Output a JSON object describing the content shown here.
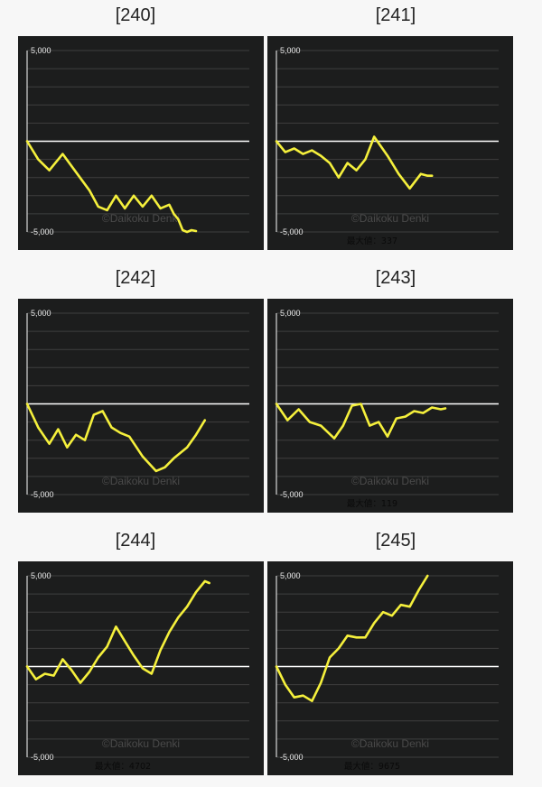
{
  "watermark": "©Daikoku Denki",
  "line_color": "#f5f03c",
  "panel_color": "#1c1d1d",
  "zero_line_color": "#ffffff",
  "chart_data": [
    {
      "type": "line",
      "title": "[240]",
      "ylim": [
        -5000,
        5000
      ],
      "yticks": [
        "5,000",
        "-5,000"
      ],
      "grid": true,
      "max_label": "",
      "x": [
        0,
        5,
        10,
        16,
        22,
        28,
        32,
        36,
        40,
        44,
        48,
        52,
        56,
        60,
        64,
        66,
        68,
        70,
        72,
        74,
        76
      ],
      "y": [
        0,
        -1000,
        -1600,
        -700,
        -1700,
        -2700,
        -3600,
        -3800,
        -3000,
        -3700,
        -3000,
        -3600,
        -3000,
        -3700,
        -3500,
        -4000,
        -4300,
        -4900,
        -5000,
        -4900,
        -4950
      ]
    },
    {
      "type": "line",
      "title": "[241]",
      "ylim": [
        -5000,
        5000
      ],
      "yticks": [
        "5,000",
        "-5,000"
      ],
      "grid": true,
      "max_label": "最大値：337",
      "x": [
        0,
        4,
        8,
        12,
        16,
        20,
        24,
        28,
        32,
        36,
        40,
        44,
        50,
        55,
        60,
        65,
        68,
        70
      ],
      "y": [
        0,
        -600,
        -400,
        -700,
        -500,
        -800,
        -1200,
        -2000,
        -1200,
        -1600,
        -1000,
        250,
        -800,
        -1800,
        -2600,
        -1800,
        -1900,
        -1900
      ]
    },
    {
      "type": "line",
      "title": "[242]",
      "ylim": [
        -5000,
        5000
      ],
      "yticks": [
        "5,000",
        "-5,000"
      ],
      "grid": true,
      "max_label": "",
      "x": [
        0,
        5,
        10,
        14,
        18,
        22,
        26,
        30,
        34,
        38,
        42,
        46,
        52,
        58,
        62,
        66,
        72,
        76,
        80
      ],
      "y": [
        0,
        -1300,
        -2200,
        -1400,
        -2400,
        -1700,
        -2000,
        -600,
        -400,
        -1300,
        -1600,
        -1800,
        -2900,
        -3700,
        -3500,
        -3000,
        -2400,
        -1700,
        -900
      ]
    },
    {
      "type": "line",
      "title": "[243]",
      "ylim": [
        -5000,
        5000
      ],
      "yticks": [
        "5,000",
        "-5,000"
      ],
      "grid": true,
      "max_label": "最大値：119",
      "x": [
        0,
        5,
        10,
        15,
        20,
        26,
        30,
        34,
        38,
        42,
        46,
        50,
        54,
        58,
        62,
        66,
        70,
        74,
        76
      ],
      "y": [
        0,
        -900,
        -300,
        -1000,
        -1200,
        -1900,
        -1200,
        -100,
        0,
        -1200,
        -1000,
        -1800,
        -800,
        -700,
        -400,
        -500,
        -200,
        -300,
        -250
      ]
    },
    {
      "type": "line",
      "title": "[244]",
      "ylim": [
        -5000,
        5000
      ],
      "yticks": [
        "5,000",
        "-5,000"
      ],
      "grid": true,
      "max_label": "最大値：4702",
      "x": [
        0,
        4,
        8,
        12,
        16,
        20,
        24,
        28,
        32,
        36,
        40,
        44,
        48,
        52,
        56,
        60,
        64,
        68,
        72,
        76,
        80,
        82
      ],
      "y": [
        0,
        -700,
        -400,
        -500,
        400,
        -200,
        -900,
        -300,
        500,
        1100,
        2200,
        1400,
        600,
        -100,
        -400,
        900,
        1900,
        2700,
        3300,
        4100,
        4700,
        4600
      ]
    },
    {
      "type": "line",
      "title": "[245]",
      "ylim": [
        -5000,
        5000
      ],
      "yticks": [
        "5,000",
        "-5,000"
      ],
      "grid": true,
      "max_label": "最大値：9675",
      "x": [
        0,
        4,
        8,
        12,
        16,
        20,
        24,
        28,
        32,
        36,
        40,
        44,
        48,
        52,
        56,
        60,
        64,
        68
      ],
      "y": [
        0,
        -1000,
        -1700,
        -1600,
        -1900,
        -900,
        500,
        1000,
        1700,
        1600,
        1600,
        2400,
        3000,
        2800,
        3400,
        3300,
        4200,
        5000
      ]
    }
  ]
}
